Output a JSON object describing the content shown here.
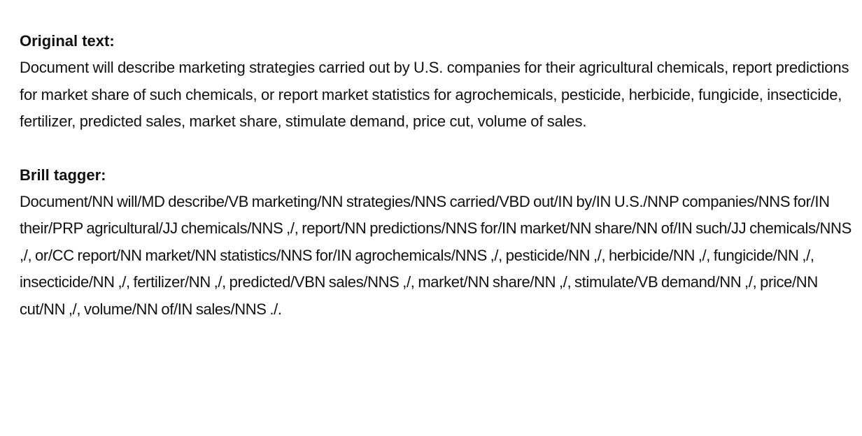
{
  "original": {
    "heading": "Original text:",
    "text": "Document will describe marketing strategies carried out by U.S. companies for their agricultural chemicals, report predictions for market share of such chemicals, or report market statistics for agrochemicals, pesticide, herbicide, fungicide, insecticide, fertilizer, predicted sales, market share, stimulate demand, price cut, volume of sales."
  },
  "brill": {
    "heading": "Brill tagger:",
    "text": "Document/NN will/MD describe/VB marketing/NN strategies/NNS carried/VBD out/IN by/IN U.S./NNP companies/NNS for/IN their/PRP agricultural/JJ chemicals/NNS ,/, report/NN predictions/NNS for/IN market/NN share/NN of/IN such/JJ chemicals/NNS ,/, or/CC report/NN market/NN statistics/NNS for/IN agrochemicals/NNS ,/, pesticide/NN ,/, herbicide/NN ,/, fungicide/NN ,/, insecticide/NN ,/, fertilizer/NN ,/, predicted/VBN sales/NNS ,/, market/NN share/NN ,/, stimulate/VB demand/NN ,/, price/NN cut/NN ,/, volume/NN of/IN sales/NNS ./."
  }
}
